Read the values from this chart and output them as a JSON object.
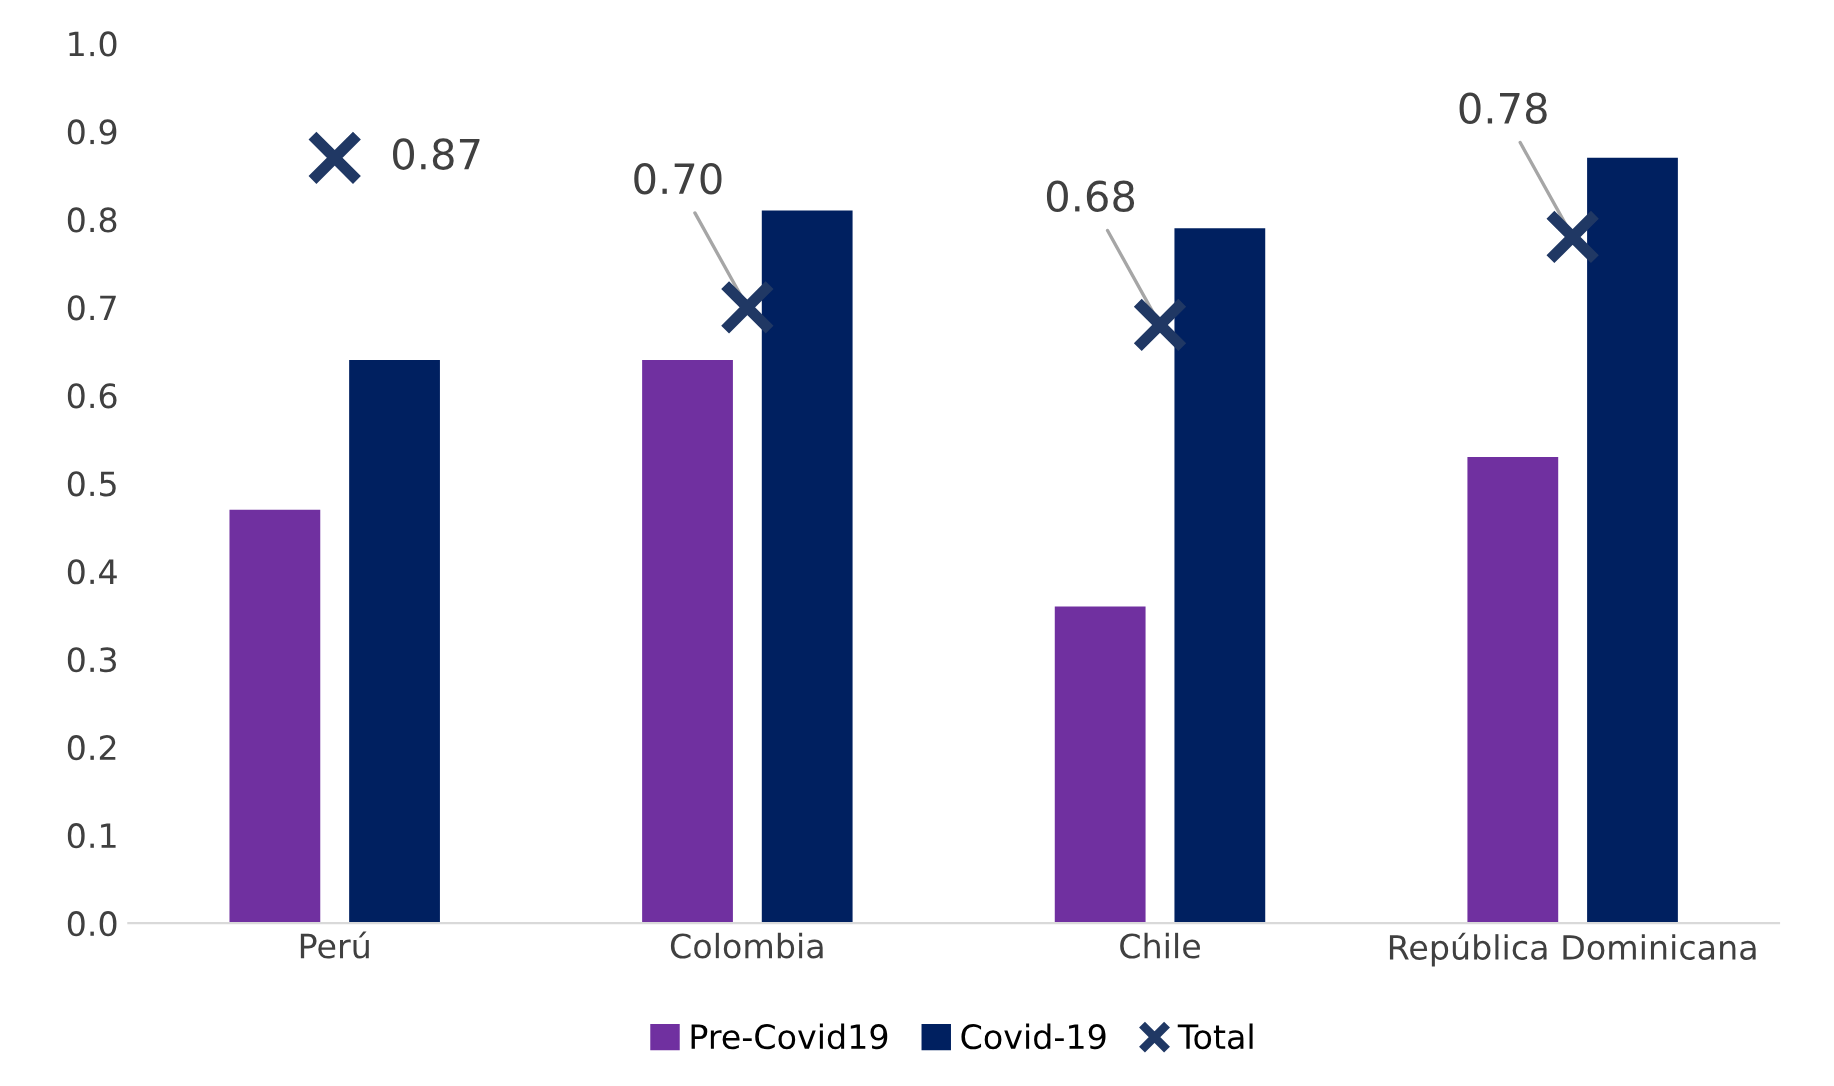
{
  "chart_data": {
    "type": "bar",
    "categories": [
      "Perú",
      "Colombia",
      "Chile",
      "República Dominicana"
    ],
    "series": [
      {
        "name": "Pre-Covid19",
        "color": "#7030a0",
        "values": [
          0.47,
          0.64,
          0.36,
          0.53
        ]
      },
      {
        "name": "Covid-19",
        "color": "#002060",
        "values": [
          0.64,
          0.81,
          0.79,
          0.87
        ]
      },
      {
        "name": "Total",
        "type": "scatter",
        "marker": "cross",
        "color": "#203864",
        "values": [
          0.87,
          0.7,
          0.68,
          0.78
        ],
        "value_labels": [
          "0.87",
          "0.70",
          "0.68",
          "0.78"
        ]
      }
    ],
    "ylim": [
      0.0,
      1.0
    ],
    "yticks": [
      {
        "value": 0.0,
        "label": "0.0"
      },
      {
        "value": 0.1,
        "label": "0.1"
      },
      {
        "value": 0.2,
        "label": "0.2"
      },
      {
        "value": 0.3,
        "label": "0.3"
      },
      {
        "value": 0.4,
        "label": "0.4"
      },
      {
        "value": 0.5,
        "label": "0.5"
      },
      {
        "value": 0.6,
        "label": "0.6"
      },
      {
        "value": 0.7,
        "label": "0.7"
      },
      {
        "value": 0.8,
        "label": "0.8"
      },
      {
        "value": 0.9,
        "label": "0.9"
      },
      {
        "value": 1.0,
        "label": "1.0"
      }
    ],
    "legend": "bottom"
  }
}
